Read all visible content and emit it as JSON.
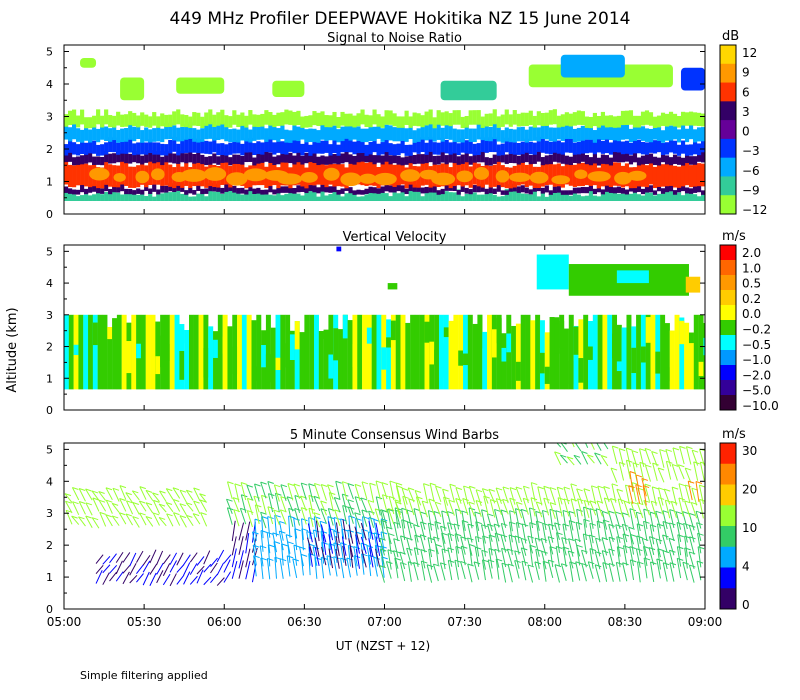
{
  "figure": {
    "title": "449 MHz Profiler DEEPWAVE Hokitika NZ 15 June 2014",
    "ylabel": "Altitude (km)",
    "xlabel": "UT  (NZST + 12)",
    "footnote": "Simple filtering applied",
    "x_ticks": [
      "05:00",
      "05:30",
      "06:00",
      "06:30",
      "07:00",
      "07:30",
      "08:00",
      "08:30",
      "09:00"
    ],
    "x_range": [
      5.0,
      9.0
    ],
    "y_ticks": [
      "0",
      "1",
      "2",
      "3",
      "4",
      "5"
    ],
    "y_range": [
      0,
      5.2
    ]
  },
  "chart_data": [
    {
      "type": "heatmap",
      "title": "Signal to Noise Ratio",
      "colorbar_unit": "dB",
      "colorbar_labels": [
        "12",
        "9",
        "6",
        "3",
        "0",
        "−3",
        "−6",
        "−9",
        "−12"
      ],
      "colorbar_colors": [
        "#ffd700",
        "#ff9900",
        "#ff3300",
        "#330066",
        "#660099",
        "#0033ff",
        "#00aaff",
        "#33cc99",
        "#99ff33"
      ],
      "layers": [
        {
          "from_km": 0.4,
          "to_km": 0.65,
          "color": "#33cc99"
        },
        {
          "from_km": 0.65,
          "to_km": 0.85,
          "color": "#330066"
        },
        {
          "from_km": 0.85,
          "to_km": 1.55,
          "color": "#ff3300"
        },
        {
          "from_km": 1.55,
          "to_km": 1.85,
          "color": "#330066"
        },
        {
          "from_km": 1.85,
          "to_km": 2.25,
          "color": "#0033ff"
        },
        {
          "from_km": 2.25,
          "to_km": 2.7,
          "color": "#00aaff"
        },
        {
          "from_km": 2.7,
          "to_km": 3.1,
          "color": "#99ff33"
        }
      ],
      "upper_patches": [
        {
          "t0": 5.35,
          "t1": 5.5,
          "z0": 3.5,
          "z1": 4.2,
          "color": "#99ff33"
        },
        {
          "t0": 5.7,
          "t1": 6.0,
          "z0": 3.7,
          "z1": 4.2,
          "color": "#99ff33"
        },
        {
          "t0": 6.3,
          "t1": 6.5,
          "z0": 3.6,
          "z1": 4.1,
          "color": "#99ff33"
        },
        {
          "t0": 7.35,
          "t1": 7.7,
          "z0": 3.5,
          "z1": 4.1,
          "color": "#33cc99"
        },
        {
          "t0": 7.9,
          "t1": 8.8,
          "z0": 3.9,
          "z1": 4.6,
          "color": "#99ff33"
        },
        {
          "t0": 8.1,
          "t1": 8.5,
          "z0": 4.2,
          "z1": 4.9,
          "color": "#00aaff"
        },
        {
          "t0": 8.85,
          "t1": 9.0,
          "z0": 3.8,
          "z1": 4.5,
          "color": "#0033ff"
        },
        {
          "t0": 5.1,
          "t1": 5.2,
          "z0": 4.5,
          "z1": 4.8,
          "color": "#99ff33"
        }
      ]
    },
    {
      "type": "heatmap",
      "title": "Vertical Velocity",
      "colorbar_unit": "m/s",
      "colorbar_labels": [
        "2.0",
        "1.0",
        "0.5",
        "0.2",
        "0.0",
        "−0.2",
        "−0.5",
        "−1.0",
        "−2.0",
        "−5.0",
        "−10.0"
      ],
      "colorbar_colors": [
        "#ff0000",
        "#ff6600",
        "#ff9900",
        "#ffcc00",
        "#ffff00",
        "#33cc00",
        "#00ffff",
        "#0099ff",
        "#0000ff",
        "#330099",
        "#330033"
      ],
      "column_pattern": [
        "#33cc00",
        "#00ffff",
        "#33cc00",
        "#ffff00",
        "#33cc00",
        "#33cc00",
        "#ffff00",
        "#00ffff",
        "#33cc00",
        "#ffff00",
        "#33cc00",
        "#00ffff"
      ],
      "base_top_km": 3.0,
      "upper_patches": [
        {
          "t0": 7.95,
          "t1": 8.15,
          "z0": 3.8,
          "z1": 4.9,
          "color": "#00ffff"
        },
        {
          "t0": 8.15,
          "t1": 8.9,
          "z0": 3.6,
          "z1": 4.6,
          "color": "#33cc00"
        },
        {
          "t0": 8.45,
          "t1": 8.65,
          "z0": 4.0,
          "z1": 4.4,
          "color": "#00ffff"
        },
        {
          "t0": 8.88,
          "t1": 8.97,
          "z0": 3.7,
          "z1": 4.2,
          "color": "#ffcc00"
        },
        {
          "t0": 6.7,
          "t1": 6.73,
          "z0": 5.0,
          "z1": 5.15,
          "color": "#0000ff"
        },
        {
          "t0": 7.02,
          "t1": 7.08,
          "z0": 3.8,
          "z1": 4.0,
          "color": "#33cc00"
        }
      ]
    },
    {
      "type": "scatter",
      "title": "5 Minute Consensus Wind Barbs",
      "colorbar_unit": "m/s",
      "colorbar_labels": [
        "30",
        "20",
        "10",
        "4",
        "0"
      ],
      "colorbar_colors": [
        "#ff2200",
        "#ff8800",
        "#ffcc00",
        "#99ff33",
        "#33cc66",
        "#00aaff",
        "#0000ff",
        "#330066"
      ],
      "groups": [
        {
          "t0": 5.05,
          "t1": 5.9,
          "z": [
            2.6,
            3.0,
            3.4
          ],
          "speed": 10,
          "dir": 300
        },
        {
          "t0": 5.2,
          "t1": 6.0,
          "z": [
            0.8,
            1.1,
            1.4
          ],
          "speed": 2,
          "dir": 60
        },
        {
          "t0": 6.05,
          "t1": 6.2,
          "z": [
            0.9,
            1.3,
            1.7,
            2.1
          ],
          "speed": 2,
          "dir": 30
        },
        {
          "t0": 6.2,
          "t1": 7.0,
          "z": [
            1.0,
            1.4,
            1.8,
            2.2
          ],
          "speed": 5,
          "dir": 340
        },
        {
          "t0": 6.55,
          "t1": 7.0,
          "z": [
            1.3,
            1.7,
            2.1
          ],
          "speed": 2,
          "dir": 330
        },
        {
          "t0": 6.05,
          "t1": 7.1,
          "z": [
            2.6,
            3.0,
            3.4
          ],
          "speed": 9,
          "dir": 320
        },
        {
          "t0": 7.0,
          "t1": 9.0,
          "z": [
            0.9,
            1.3,
            1.7,
            2.1,
            2.5
          ],
          "speed": 7,
          "dir": 330
        },
        {
          "t0": 7.1,
          "t1": 9.0,
          "z": [
            2.9,
            3.3
          ],
          "speed": 10,
          "dir": 320
        },
        {
          "t0": 8.1,
          "t1": 8.4,
          "z": [
            4.5,
            5.0
          ],
          "speed": 9,
          "dir": 300
        },
        {
          "t0": 8.45,
          "t1": 9.0,
          "z": [
            4.0,
            4.5
          ],
          "speed": 10,
          "dir": 320
        },
        {
          "t0": 8.55,
          "t1": 8.65,
          "z": [
            3.3,
            3.6
          ],
          "speed": 20,
          "dir": 330
        },
        {
          "t0": 8.92,
          "t1": 8.98,
          "z": [
            3.4
          ],
          "speed": 20,
          "dir": 330
        }
      ]
    }
  ]
}
